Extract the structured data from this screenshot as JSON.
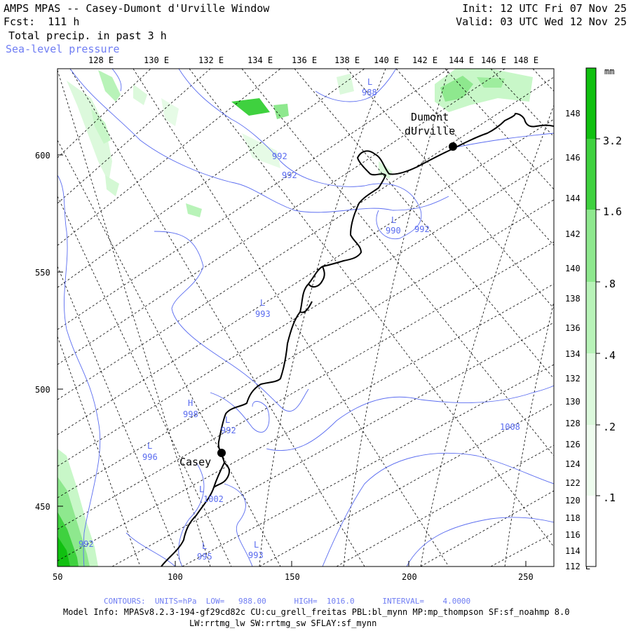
{
  "header": {
    "title": "AMPS MPAS -- Casey-Dumont d'Urville Window",
    "fcst_label": "Fcst:",
    "fcst_value": "111 h",
    "field1": "Total precip. in past 3 h",
    "field2": "Sea-level pressure",
    "init": "Init: 12 UTC Fri 07 Nov 25",
    "valid": "Valid: 03 UTC Wed 12 Nov 25"
  },
  "colors": {
    "coast": "#000000",
    "isobar": "#5a6cf0",
    "grid": "#000000",
    "precip": [
      "#f2fdf2",
      "#c8f7c8",
      "#9eed9e",
      "#6ee06e",
      "#3fd13f",
      "#10c010"
    ]
  },
  "axes": {
    "x_ticks": [
      "50",
      "100",
      "150",
      "200",
      "250"
    ],
    "y_ticks": [
      "450",
      "500",
      "550",
      "600"
    ],
    "lon_top": [
      "128 E",
      "130 E",
      "132 E",
      "134 E",
      "136 E",
      "138 E",
      "140 E",
      "142 E",
      "144 E",
      "146 E",
      "148 E"
    ],
    "lat_right": [
      "148 E",
      "146 E",
      "144 E",
      "142 E",
      "140 E",
      "138 E",
      "136 E",
      "134 E",
      "132 E",
      "130 E",
      "128 E",
      "126 E",
      "124 E",
      "122 E",
      "120 E",
      "118 E",
      "116 E",
      "114 E",
      "112 E"
    ]
  },
  "stations": [
    {
      "name_line1": "Dumont",
      "name_line2": "dUrville"
    },
    {
      "name_line1": "Casey",
      "name_line2": ""
    }
  ],
  "pressure_labels": [
    {
      "text": "L"
    },
    {
      "text": "988"
    },
    {
      "text": "992"
    },
    {
      "text": "992"
    },
    {
      "text": "L"
    },
    {
      "text": "990"
    },
    {
      "text": "992"
    },
    {
      "text": "L"
    },
    {
      "text": "993"
    },
    {
      "text": "H"
    },
    {
      "text": "998"
    },
    {
      "text": "L"
    },
    {
      "text": "992"
    },
    {
      "text": "L"
    },
    {
      "text": "996"
    },
    {
      "text": "1008"
    },
    {
      "text": "L"
    },
    {
      "text": "1002"
    },
    {
      "text": "L"
    },
    {
      "text": "995"
    },
    {
      "text": "L"
    },
    {
      "text": "993"
    },
    {
      "text": "992"
    }
  ],
  "colorbar": {
    "unit": "mm",
    "labels": [
      "3.2",
      "1.6",
      ".8",
      ".4",
      ".2",
      ".1"
    ]
  },
  "footer": {
    "contours": "CONTOURS:  UNITS=hPa  LOW=   988.00      HIGH=  1016.0      INTERVAL=    4.0000",
    "model_info": "Model Info: MPASv8.2.3-194-gf29cd82c CU:cu_grell_freitas PBL:bl_mynn MP:mp_thompson SF:sf_noahmp 8.0",
    "model_info2": "LW:rrtmg_lw SW:rrtmg_sw SFLAY:sf_mynn"
  }
}
